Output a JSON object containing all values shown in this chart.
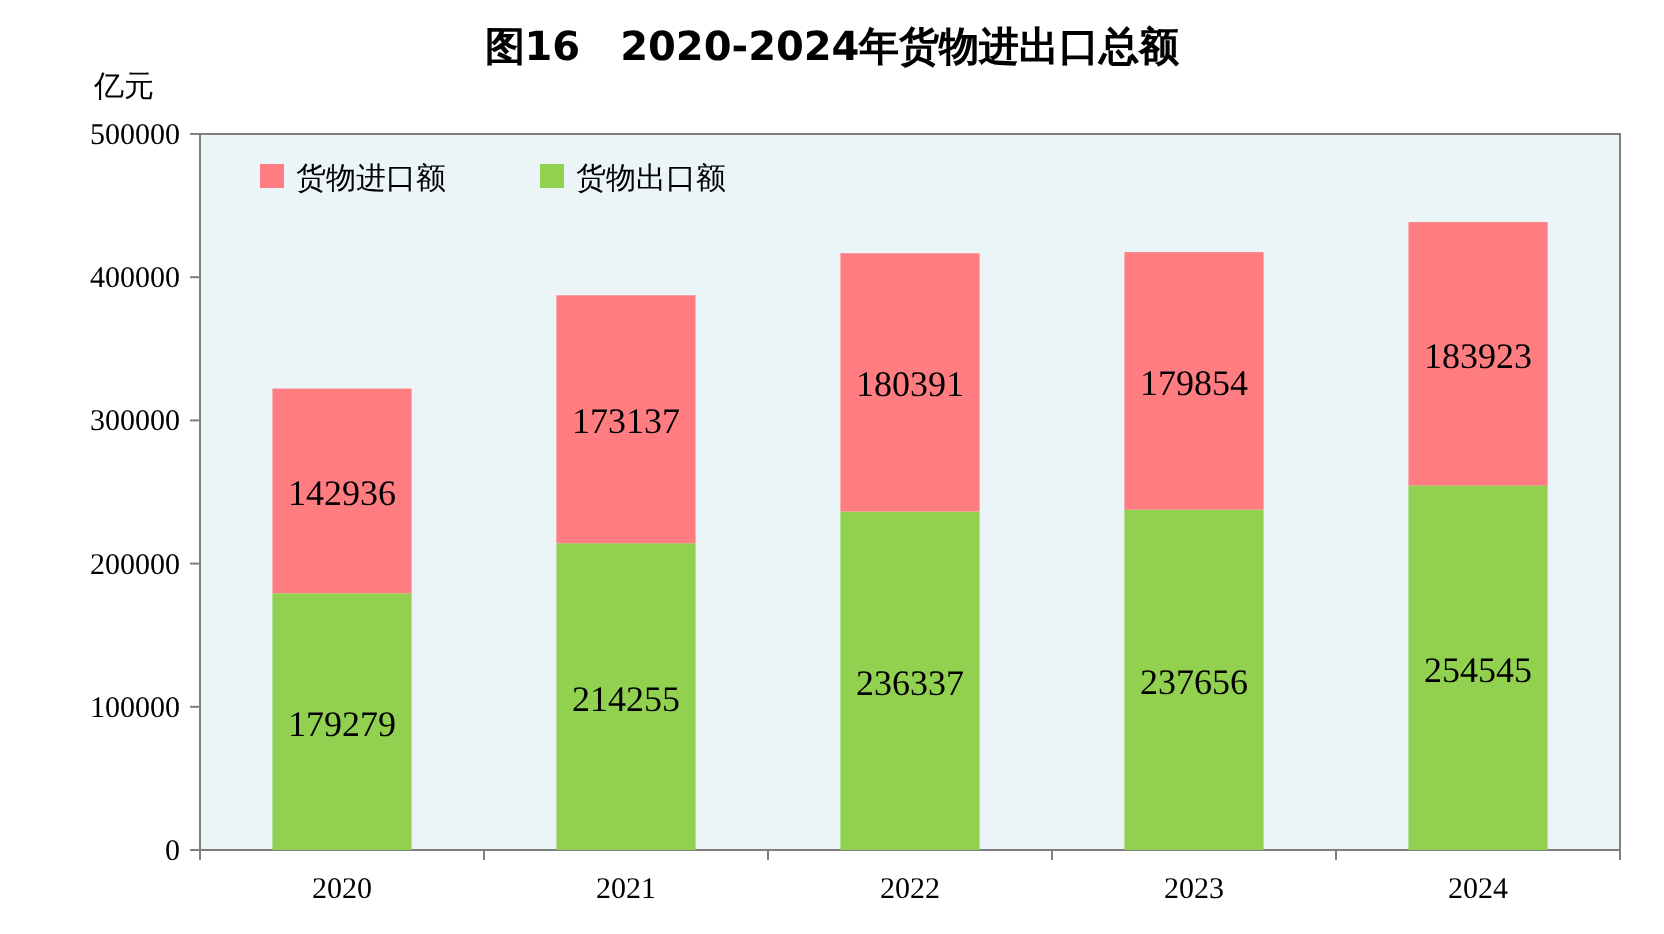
{
  "chart_data": {
    "type": "bar",
    "title": "图16　2020-2024年货物进出口总额",
    "ylabel": "亿元",
    "categories": [
      "2020",
      "2021",
      "2022",
      "2023",
      "2024"
    ],
    "stacked": true,
    "data_labels": true,
    "legend": "top left",
    "ylim": [
      0,
      500000
    ],
    "yticks": [
      0,
      100000,
      200000,
      300000,
      400000,
      500000
    ],
    "series": [
      {
        "name": "货物出口额",
        "color": "#92d050",
        "values": [
          179279,
          214255,
          236337,
          237656,
          254545
        ]
      },
      {
        "name": "货物进口额",
        "color": "#ff7c80",
        "values": [
          142936,
          173137,
          180391,
          179854,
          183923
        ]
      }
    ]
  }
}
